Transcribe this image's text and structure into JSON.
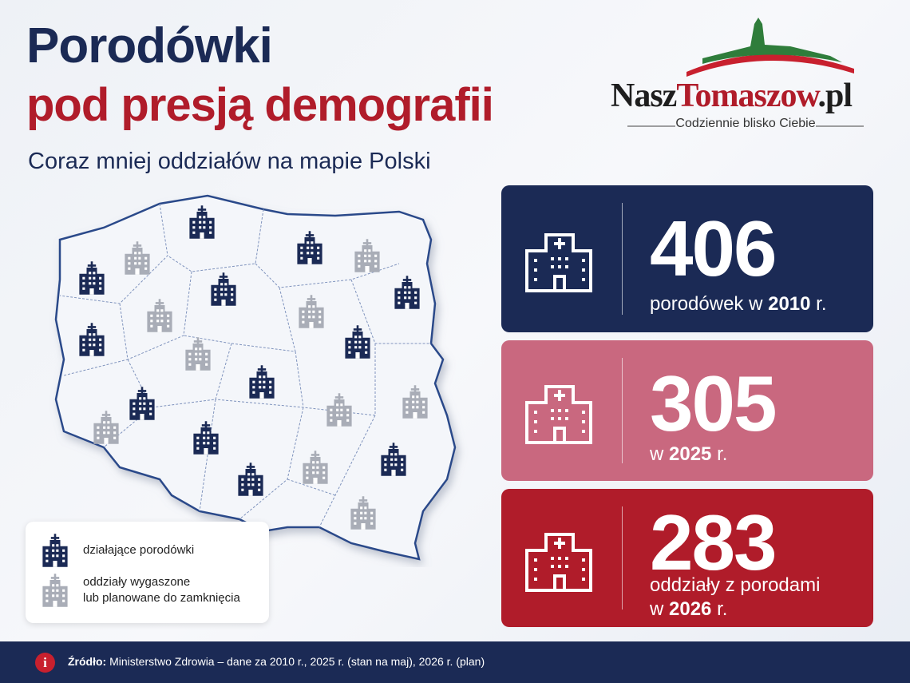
{
  "header": {
    "title_line1": "Porodówki",
    "title_line2": "pod presją demografii",
    "subtitle": "Coraz mniej oddziałów na mapie Polski"
  },
  "logo": {
    "name_part1": "Nasz",
    "name_part2": "Tomaszow",
    "name_part3": ".pl",
    "tagline": "Codziennie blisko Ciebie"
  },
  "legend": {
    "items": [
      {
        "lines": [
          "działające porodówki"
        ]
      },
      {
        "lines": [
          "oddziały wygaszone",
          "lub planowane do zamknięcia"
        ]
      }
    ]
  },
  "stats": [
    {
      "value": 406,
      "prefix": "porodówek w",
      "year": 2010,
      "suffix": "r."
    },
    {
      "value": 305,
      "prefix": "w",
      "year": 2025,
      "suffix": "r."
    },
    {
      "value": 283,
      "caption": "oddziały z porodami",
      "prefix": "w",
      "year": 2026,
      "suffix": "r."
    }
  ],
  "footer": {
    "info_icon": "i",
    "source_label": "Źródło:",
    "source_text": "Ministerstwo Zdrowia – dane za 2010 r., 2025 r. (stan na maj), 2026 r. (plan)"
  }
}
